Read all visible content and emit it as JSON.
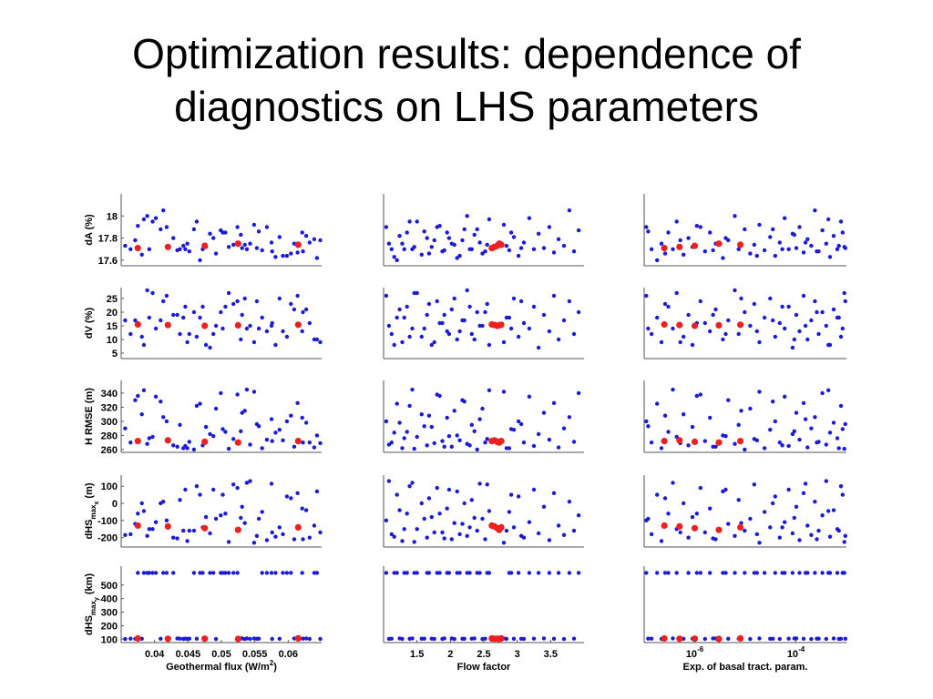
{
  "title": {
    "line1": "Optimization results: dependence of",
    "line2": "diagnostics on LHS parameters"
  },
  "colors": {
    "points": "#1b1bd6",
    "optimal": "#ee2020",
    "axis": "#555555"
  },
  "chart_data": {
    "type": "scatter",
    "grid": false,
    "columns": [
      {
        "xlabel": "Geothermal flux (W/m2)",
        "xlabel_main": "Geothermal flux (W/m",
        "xlabel_sup": "2",
        "xlabel_end": ")",
        "xscale": "linear",
        "xlim": [
          0.035,
          0.065
        ],
        "xticks": [
          0.04,
          0.045,
          0.05,
          0.055,
          0.06
        ],
        "xticklabels": [
          "0.04",
          "0.045",
          "0.05",
          "0.055",
          "0.06"
        ]
      },
      {
        "xlabel": "Flow factor",
        "xscale": "linear",
        "xlim": [
          1.0,
          4.0
        ],
        "xticks": [
          1.5,
          2,
          2.5,
          3,
          3.5
        ],
        "xticklabels": [
          "1.5",
          "2",
          "2.5",
          "3",
          "3.5"
        ]
      },
      {
        "xlabel": "Exp. of basal tract. param.",
        "xscale": "log",
        "xlim": [
          1e-07,
          0.001
        ],
        "xticks": [
          1e-06,
          0.0001
        ],
        "xticklabels": [
          [
            "10",
            "-6"
          ],
          [
            "10",
            "-4"
          ]
        ]
      }
    ],
    "rows": [
      {
        "ylabel": "dA (%)",
        "ylim": [
          17.55,
          18.2
        ],
        "yticks": [
          17.6,
          17.8,
          18
        ],
        "yticklabels": [
          "17.6",
          "17.8",
          "18"
        ]
      },
      {
        "ylabel": "dV (%)",
        "ylim": [
          3,
          29
        ],
        "yticks": [
          5,
          10,
          15,
          20,
          25
        ],
        "yticklabels": [
          "5",
          "10",
          "15",
          "20",
          "25"
        ]
      },
      {
        "ylabel": "H RMSE (m)",
        "ylim": [
          256,
          358
        ],
        "yticks": [
          260,
          280,
          300,
          320,
          340
        ],
        "yticklabels": [
          "260",
          "280",
          "300",
          "320",
          "340"
        ]
      },
      {
        "ylabel": "dHS_max_x (m)",
        "ylabel_main": "dHS",
        "ylabel_sub": "max",
        "ylabel_subsub": "x",
        "ylabel_end": " (m)",
        "ylim": [
          -255,
          165
        ],
        "yticks": [
          -200,
          -100,
          0,
          100
        ],
        "yticklabels": [
          "-200",
          "-100",
          "0",
          "100"
        ]
      },
      {
        "ylabel": "dHS_max_y (km)",
        "ylabel_main": "dHS",
        "ylabel_sub": "max",
        "ylabel_subsub": "y",
        "ylabel_end": " (km)",
        "ylim": [
          75,
          640
        ],
        "yticks": [
          100,
          200,
          300,
          400,
          500
        ],
        "yticklabels": [
          "100",
          "200",
          "300",
          "400",
          "500"
        ]
      }
    ],
    "optimal_points": {
      "geothermal_flux": [
        0.0375,
        0.042,
        0.0475,
        0.0525,
        0.0615
      ],
      "flow_factor": [
        2.62,
        2.66,
        2.7,
        2.73,
        2.76
      ],
      "basal_traction_exponent": [
        2.5e-07,
        5e-07,
        1e-06,
        3e-06,
        8e-06
      ],
      "dA": [
        17.71,
        17.72,
        17.73,
        17.75,
        17.74
      ],
      "dV": [
        15.5,
        15.3,
        15.0,
        15.2,
        15.4
      ],
      "H_RMSE": [
        272,
        273,
        271,
        270,
        272
      ],
      "dHS_max_x": [
        -130,
        -135,
        -145,
        -155,
        -140
      ],
      "dHS_max_y": [
        105,
        103,
        104,
        102,
        106
      ]
    },
    "sample_points": {
      "geothermal_flux": [
        0.0418,
        0.0364,
        0.0468,
        0.0449,
        0.0506,
        0.0538,
        0.0397,
        0.0381,
        0.0428,
        0.0477,
        0.0524,
        0.0576,
        0.0621,
        0.0609,
        0.0643,
        0.0371,
        0.0389,
        0.0438,
        0.0459,
        0.0492,
        0.0518,
        0.0549,
        0.0561,
        0.0587,
        0.0598,
        0.0632,
        0.0402,
        0.0446,
        0.0483,
        0.0531,
        0.0568,
        0.0614,
        0.0639,
        0.0356,
        0.0413,
        0.0452,
        0.0499,
        0.0543,
        0.0581,
        0.0627,
        0.0392,
        0.0463,
        0.0511,
        0.0556,
        0.0604,
        0.0648,
        0.0375,
        0.0434,
        0.0488,
        0.0535,
        0.0592,
        0.0409,
        0.0472,
        0.0529,
        0.0575,
        0.0622,
        0.0384,
        0.0443,
        0.0502,
        0.0553
      ],
      "flow_factor": [
        1.04,
        1.12,
        1.2,
        1.28,
        1.35,
        1.43,
        1.5,
        1.57,
        1.65,
        1.72,
        1.8,
        1.88,
        1.95,
        2.02,
        2.1,
        2.18,
        2.25,
        2.32,
        2.4,
        2.48,
        2.55,
        2.8,
        2.88,
        2.95,
        3.02,
        3.1,
        3.18,
        3.25,
        3.32,
        3.4,
        3.48,
        3.55,
        3.62,
        3.7,
        3.78,
        3.85,
        3.92,
        1.08,
        1.16,
        1.24,
        1.31,
        1.39,
        1.46,
        1.61,
        1.68,
        1.76,
        1.84,
        1.91,
        1.98,
        2.06,
        2.14,
        2.21,
        2.29,
        2.36,
        2.44,
        2.52,
        2.58,
        2.84,
        2.91,
        3.06
      ],
      "basal_traction_exponent": [
        1.1e-07,
        1.4e-07,
        1.8e-07,
        2.2e-07,
        3e-07,
        3.7e-07,
        4.4e-07,
        6e-07,
        7.5e-07,
        9e-07,
        1.3e-06,
        1.6e-06,
        2e-06,
        2.6e-06,
        3.6e-06,
        4.6e-06,
        6.2e-06,
        7.4e-06,
        9.7e-06,
        1.25e-05,
        1.5e-05,
        1.9e-05,
        2.4e-05,
        3.1e-05,
        3.9e-05,
        4.8e-05,
        6e-05,
        7.2e-05,
        8.6e-05,
        0.000102,
        0.000118,
        0.000142,
        0.00017,
        0.000202,
        0.000238,
        0.000282,
        0.000335,
        0.000398,
        0.000474,
        0.00056,
        0.00066,
        0.00078,
        0.00091,
        1.2e-07,
        2.6e-07,
        5.2e-07,
        1.1e-06,
        2.3e-06,
        4.1e-06,
        8.3e-06,
        1.7e-05,
        3.5e-05,
        5.4e-05,
        9.3e-05,
        0.000155,
        0.00026,
        0.00044,
        0.00071,
        0.00084,
        0.00095
      ],
      "dA": [
        17.9,
        17.7,
        17.6,
        17.75,
        17.85,
        17.7,
        17.95,
        17.65,
        17.8,
        17.72,
        17.9,
        17.68,
        17.85,
        17.75,
        17.62,
        17.78,
        18.0,
        17.7,
        17.88,
        17.66,
        17.74,
        17.92,
        17.69,
        17.81,
        17.64,
        17.76,
        17.98,
        17.7,
        17.84,
        17.71,
        17.9,
        17.67,
        17.79,
        17.73,
        18.05,
        17.68,
        17.87,
        17.75,
        17.63,
        17.82,
        17.7,
        17.95,
        17.72,
        17.86,
        17.66,
        17.78,
        17.91,
        17.69,
        17.8,
        17.74,
        17.64,
        17.88,
        17.7,
        17.83,
        17.76,
        17.68,
        17.97,
        17.73,
        17.85,
        17.71
      ],
      "dV": [
        26,
        12,
        18,
        9,
        22,
        14,
        27,
        11,
        19,
        8,
        24,
        16,
        13,
        21,
        10,
        17,
        28,
        12,
        20,
        15,
        23,
        9,
        18,
        25,
        11,
        16,
        14,
        22,
        7,
        19,
        13,
        26,
        10,
        17,
        24,
        12,
        20,
        15,
        8,
        21,
        18,
        11,
        27,
        14,
        23,
        9,
        16,
        19,
        12,
        25,
        13,
        17,
        22,
        10,
        15,
        20,
        8,
        18,
        14,
        24
      ],
      "H_RMSE": [
        300,
        270,
        325,
        262,
        285,
        345,
        278,
        310,
        266,
        292,
        338,
        272,
        305,
        264,
        280,
        330,
        268,
        295,
        260,
        318,
        275,
        342,
        262,
        288,
        300,
        270,
        335,
        265,
        282,
        312,
        274,
        326,
        263,
        290,
        306,
        271,
        340,
        267,
        284,
        298,
        276,
        322,
        261,
        293,
        308,
        269,
        336,
        264,
        279,
        315,
        273,
        328,
        266,
        286,
        303,
        270,
        344,
        262,
        289,
        296
      ],
      "dHS_max_x": [
        -100,
        -180,
        50,
        -220,
        -60,
        120,
        -150,
        0,
        -200,
        -80,
        90,
        -170,
        -30,
        -210,
        70,
        -120,
        -190,
        20,
        -160,
        -90,
        110,
        -230,
        -50,
        -140,
        40,
        -200,
        -110,
        80,
        -175,
        -20,
        -215,
        60,
        -130,
        -185,
        10,
        -160,
        -70,
        130,
        -195,
        -40,
        -150,
        100,
        -225,
        -90,
        30,
        -170,
        -60,
        -205,
        80,
        -115,
        -180,
        0,
        -140,
        -85,
        115,
        -210,
        -45,
        -160,
        50,
        -190
      ],
      "dHS_max_y": [
        590,
        104,
        590,
        102,
        590,
        106,
        590,
        103,
        590,
        104,
        590,
        102,
        590,
        105,
        590,
        103,
        590,
        104,
        590,
        101,
        590,
        105,
        590,
        103,
        590,
        102,
        590,
        104,
        590,
        106,
        590,
        103,
        590,
        101,
        590,
        104,
        590,
        102,
        590,
        105,
        590,
        103,
        590,
        104,
        590,
        102,
        590,
        106,
        590,
        101,
        590,
        103,
        590,
        105,
        590,
        104,
        590,
        102,
        590,
        103
      ]
    }
  }
}
